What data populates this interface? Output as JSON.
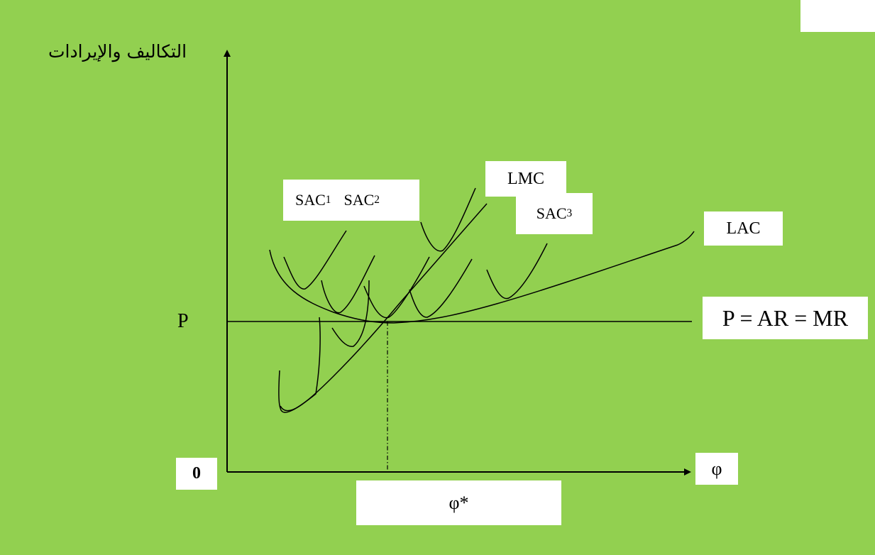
{
  "colors": {
    "background": "#92d050",
    "ink": "#000000",
    "label_box": "#ffffff"
  },
  "axes": {
    "y_label": "التكاليف والإيرادات",
    "x_label": "φ",
    "origin": "0",
    "price_label": "P",
    "equilibrium_label": "φ*"
  },
  "curves": {
    "lmc": "LMC",
    "lac": "LAC",
    "price_line": "P = AR = MR",
    "sac": [
      {
        "base": "SAC",
        "sub": "1"
      },
      {
        "base": "SAC",
        "sub": "2"
      },
      {
        "base": "SAC",
        "sub": "3"
      }
    ]
  }
}
